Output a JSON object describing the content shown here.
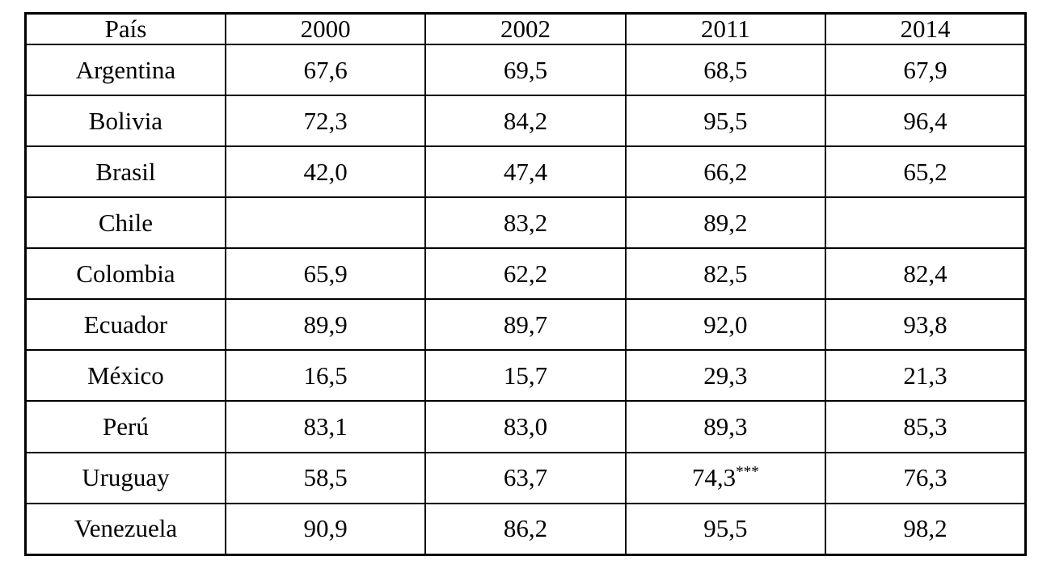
{
  "page": {
    "background_color": "#ffffff",
    "border_color": "#000000",
    "text_color": "#000000"
  },
  "table": {
    "header": [
      "País",
      "2000",
      "2002",
      "2011",
      "2014"
    ],
    "rows": [
      [
        "Argentina",
        "67,6",
        "69,5",
        "68,5",
        "67,9"
      ],
      [
        "Bolivia",
        "72,3",
        "84,2",
        "95,5",
        "96,4"
      ],
      [
        "Brasil",
        "42,0",
        "47,4",
        "66,2",
        "65,2"
      ],
      [
        "Chile",
        "",
        "83,2",
        "89,2",
        ""
      ],
      [
        "Colombia",
        "65,9",
        "62,2",
        "82,5",
        "82,4"
      ],
      [
        "Ecuador",
        "89,9",
        "89,7",
        "92,0",
        "93,8"
      ],
      [
        "México",
        "16,5",
        "15,7",
        "29,3",
        "21,3"
      ],
      [
        "Perú",
        "83,1",
        "83,0",
        "89,3",
        "85,3"
      ],
      [
        "Uruguay",
        "58,5",
        "63,7",
        "74,3***",
        "76,3"
      ],
      [
        "Venezuela",
        "90,9",
        "86,2",
        "95,5",
        "98,2"
      ]
    ]
  },
  "chart_data": {
    "type": "table",
    "title": "",
    "columns": [
      "País",
      "2000",
      "2002",
      "2011",
      "2014"
    ],
    "rows": [
      [
        "Argentina",
        "67,6",
        "69,5",
        "68,5",
        "67,9"
      ],
      [
        "Bolivia",
        "72,3",
        "84,2",
        "95,5",
        "96,4"
      ],
      [
        "Brasil",
        "42,0",
        "47,4",
        "66,2",
        "65,2"
      ],
      [
        "Chile",
        "",
        "83,2",
        "89,2",
        ""
      ],
      [
        "Colombia",
        "65,9",
        "62,2",
        "82,5",
        "82,4"
      ],
      [
        "Ecuador",
        "89,9",
        "89,7",
        "92,0",
        "93,8"
      ],
      [
        "México",
        "16,5",
        "15,7",
        "29,3",
        "21,3"
      ],
      [
        "Perú",
        "83,1",
        "83,0",
        "89,3",
        "85,3"
      ],
      [
        "Uruguay",
        "58,5",
        "63,7",
        "74,3***",
        "76,3"
      ],
      [
        "Venezuela",
        "90,9",
        "86,2",
        "95,5",
        "98,2"
      ]
    ],
    "annotations": [
      {
        "row": "Uruguay",
        "column": "2011",
        "marker": "***"
      }
    ],
    "notes": "Empty cells: Chile 2000 and Chile 2014. Decimal comma formatting."
  }
}
